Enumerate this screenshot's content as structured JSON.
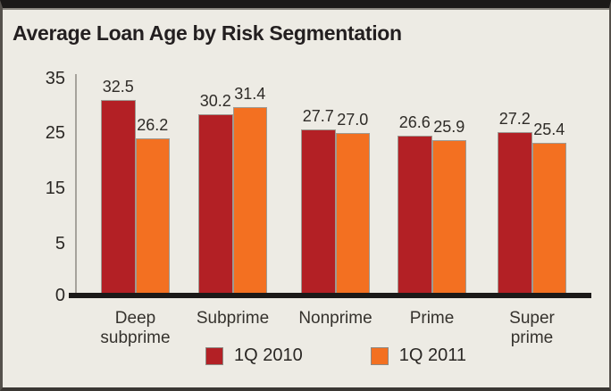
{
  "chart_data": {
    "type": "bar",
    "title": "Average Loan Age by Risk Segmentation",
    "categories": [
      "Deep subprime",
      "Subprime",
      "Nonprime",
      "Prime",
      "Super prime"
    ],
    "series": [
      {
        "name": "1Q 2010",
        "color": "#B32025",
        "values": [
          32.5,
          30.2,
          27.7,
          26.6,
          27.2
        ]
      },
      {
        "name": "1Q 2011",
        "color": "#F37021",
        "values": [
          26.2,
          31.4,
          27.0,
          25.9,
          25.4
        ]
      }
    ],
    "value_labels": [
      [
        "32.5",
        "30.2",
        "27.7",
        "26.6",
        "27.2"
      ],
      [
        "26.2",
        "31.4",
        "27.0",
        "25.9",
        "25.4"
      ]
    ],
    "xlabel": "",
    "ylabel": "",
    "ylim": [
      0,
      35
    ],
    "yticks": [
      "35",
      "25",
      "15",
      "5",
      "0"
    ],
    "grid": false,
    "legend_position": "bottom-center",
    "value_labels_shown": true
  },
  "colors": {
    "background": "#EDEBE4",
    "frame_band": "#1B1918",
    "series_1q2010": "#B32025",
    "series_1q2011": "#F37021",
    "axis_line": "#A6A29B",
    "baseline": "#1B1918",
    "text": "#262321"
  }
}
